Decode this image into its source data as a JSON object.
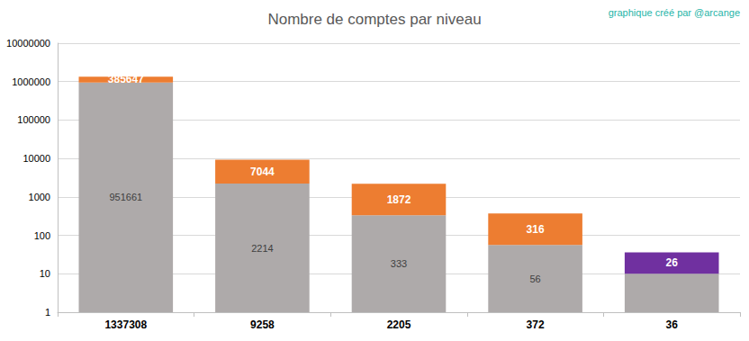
{
  "chart_data": {
    "type": "bar",
    "title": "Nombre de comptes par niveau",
    "annotation": "graphique créé par @arcange",
    "categories": [
      "1337308",
      "9258",
      "2205",
      "372",
      "36"
    ],
    "series": [
      {
        "color": "#aeaaaa",
        "values": [
          951661,
          2214,
          333,
          56,
          10
        ],
        "data_labels": true,
        "value_labels": [
          "951661",
          "2214",
          "333",
          "56",
          null
        ]
      },
      {
        "colors": [
          "#ed7d31",
          "#ed7d31",
          "#ed7d31",
          "#ed7d31",
          "#7030a0"
        ],
        "values": [
          385647,
          7044,
          1872,
          316,
          26
        ],
        "data_labels": true
      }
    ],
    "stacked": true,
    "log": "y",
    "ylim": [
      1,
      10000000
    ],
    "yticks": [
      1,
      10,
      100,
      1000,
      10000,
      100000,
      1000000,
      10000000
    ],
    "grid": true
  }
}
